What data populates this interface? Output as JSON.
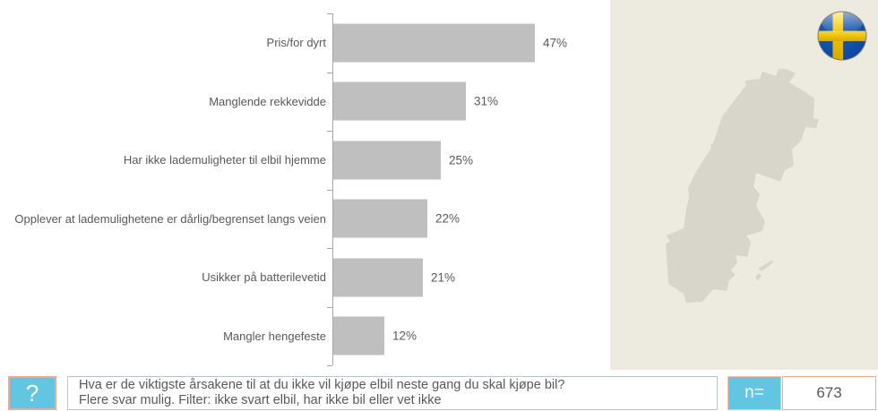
{
  "chart_data": {
    "type": "bar",
    "orientation": "horizontal",
    "title": "",
    "categories": [
      "Pris/for dyrt",
      "Manglende rekkevidde",
      "Har ikke lademuligheter til elbil hjemme",
      "Opplever at lademulighetene er dårlig/begrenset langs veien",
      "Usikker på batterilevetid",
      "Mangler hengefeste"
    ],
    "values": [
      47,
      31,
      25,
      22,
      21,
      12
    ],
    "value_labels": [
      "47%",
      "31%",
      "25%",
      "22%",
      "21%",
      "12%"
    ],
    "xlabel": "",
    "ylabel": "",
    "grid": false,
    "legend": false,
    "bar_color": "#bfbfbf",
    "axis_color": "#a6a6a6",
    "label_color": "#595959"
  },
  "side_panel": {
    "country": "Sverige",
    "map_icon": "sweden-map-silhouette",
    "flag_icon": "sweden-flag-icon",
    "background_color": "#edebdf",
    "map_color": "#d8d6ca"
  },
  "footer": {
    "question_icon_glyph": "?",
    "question_line1": "Hva er de viktigste årsakene til at du ikke vil kjøpe elbil neste gang du skal kjøpe bil?",
    "question_line2": "Flere svar mulig. Filter: ikke svart elbil, har ikke bil eller vet ikke",
    "n_label": "n=",
    "n_value": "673"
  },
  "theme": {
    "accent_blue": "#62c6e3",
    "accent_salmon": "#f2a98d",
    "flag_blue": "#0d47a1",
    "flag_yellow": "#fecb00"
  }
}
